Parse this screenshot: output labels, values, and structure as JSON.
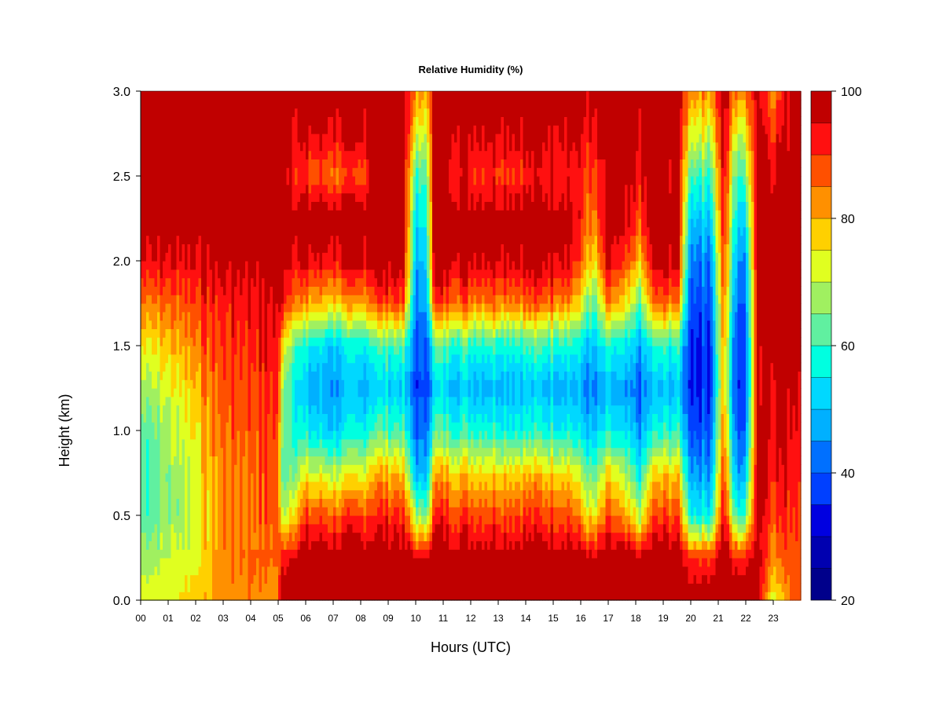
{
  "chart_data": {
    "type": "heatmap",
    "title": "Relative Humidity (%)",
    "xlabel": "Hours (UTC)",
    "ylabel": "Height (km)",
    "xlim": [
      0,
      24
    ],
    "ylim": [
      0.0,
      3.0
    ],
    "x_ticks": [
      "00",
      "01",
      "02",
      "03",
      "04",
      "05",
      "06",
      "07",
      "08",
      "09",
      "10",
      "11",
      "12",
      "13",
      "14",
      "15",
      "16",
      "17",
      "18",
      "19",
      "20",
      "21",
      "22",
      "23"
    ],
    "y_ticks": [
      "0.0",
      "0.5",
      "1.0",
      "1.5",
      "2.0",
      "2.5",
      "3.0"
    ],
    "colorbar": {
      "range": [
        20,
        100
      ],
      "levels": [
        20,
        25,
        30,
        35,
        40,
        45,
        50,
        55,
        60,
        65,
        70,
        75,
        80,
        85,
        90,
        95,
        100
      ],
      "tick_labels": [
        "20",
        "40",
        "60",
        "80",
        "100"
      ],
      "colors": [
        "#00008b",
        "#0000b0",
        "#0000e0",
        "#0040ff",
        "#0070ff",
        "#00b0ff",
        "#00d8ff",
        "#00ffe0",
        "#60f0a0",
        "#a0f060",
        "#e0ff20",
        "#ffd000",
        "#ff9000",
        "#ff5000",
        "#ff1010",
        "#c00000"
      ]
    },
    "field_description_keypoints": {
      "x_hours": [
        0,
        1,
        2,
        3,
        4,
        5.05,
        5.3,
        6,
        7,
        8.2,
        9.5,
        10.2,
        10.6,
        11.5,
        13,
        15,
        16.5,
        17,
        18.2,
        19,
        20,
        20.5,
        21.2,
        21.5,
        22.0,
        22.5,
        23.0,
        23.8
      ],
      "note": "values in %"
    },
    "profiles": [
      {
        "t": 0.0,
        "rh": [
          72,
          68,
          62,
          60,
          62,
          68,
          75,
          85,
          95,
          100,
          100,
          100,
          100
        ]
      },
      {
        "t": 1.0,
        "rh": [
          74,
          70,
          66,
          66,
          68,
          72,
          78,
          86,
          95,
          100,
          100,
          100,
          100
        ]
      },
      {
        "t": 2.0,
        "rh": [
          78,
          74,
          72,
          74,
          76,
          80,
          85,
          90,
          96,
          100,
          100,
          100,
          100
        ]
      },
      {
        "t": 3.0,
        "rh": [
          82,
          84,
          84,
          84,
          86,
          88,
          90,
          92,
          98,
          100,
          100,
          100,
          100
        ]
      },
      {
        "t": 4.0,
        "rh": [
          85,
          86,
          86,
          86,
          88,
          90,
          92,
          94,
          98,
          100,
          100,
          100,
          100
        ]
      },
      {
        "t": 5.0,
        "rh": [
          80,
          86,
          88,
          88,
          90,
          92,
          94,
          96,
          100,
          100,
          100,
          100,
          100
        ]
      },
      {
        "t": 5.1,
        "rh": [
          100,
          92,
          70,
          62,
          65,
          70,
          78,
          95,
          100,
          100,
          100,
          100,
          100
        ]
      },
      {
        "t": 6.0,
        "rh": [
          100,
          100,
          88,
          72,
          55,
          48,
          55,
          80,
          95,
          100,
          88,
          95,
          100
        ]
      },
      {
        "t": 7.0,
        "rh": [
          100,
          100,
          88,
          70,
          52,
          46,
          52,
          78,
          94,
          100,
          86,
          95,
          100
        ]
      },
      {
        "t": 8.0,
        "rh": [
          100,
          100,
          88,
          72,
          55,
          48,
          55,
          80,
          96,
          100,
          86,
          95,
          100
        ]
      },
      {
        "t": 8.4,
        "rh": [
          100,
          100,
          92,
          80,
          62,
          52,
          60,
          88,
          100,
          100,
          100,
          100,
          100
        ]
      },
      {
        "t": 9.5,
        "rh": [
          100,
          100,
          92,
          80,
          62,
          52,
          62,
          90,
          100,
          100,
          100,
          100,
          100
        ]
      },
      {
        "t": 10.0,
        "rh": [
          100,
          96,
          70,
          50,
          42,
          38,
          40,
          45,
          50,
          55,
          62,
          75,
          85
        ]
      },
      {
        "t": 10.3,
        "rh": [
          100,
          96,
          62,
          45,
          40,
          36,
          38,
          42,
          46,
          52,
          58,
          68,
          78
        ]
      },
      {
        "t": 10.7,
        "rh": [
          100,
          100,
          92,
          80,
          62,
          52,
          62,
          90,
          100,
          100,
          100,
          100,
          100
        ]
      },
      {
        "t": 12.0,
        "rh": [
          100,
          100,
          90,
          78,
          60,
          50,
          60,
          86,
          98,
          100,
          92,
          98,
          100
        ]
      },
      {
        "t": 14.0,
        "rh": [
          100,
          100,
          90,
          78,
          58,
          50,
          60,
          86,
          98,
          100,
          92,
          98,
          100
        ]
      },
      {
        "t": 15.5,
        "rh": [
          100,
          100,
          90,
          78,
          58,
          50,
          60,
          86,
          98,
          100,
          94,
          98,
          100
        ]
      },
      {
        "t": 16.5,
        "rh": [
          100,
          96,
          72,
          60,
          48,
          42,
          48,
          60,
          74,
          82,
          88,
          92,
          96
        ]
      },
      {
        "t": 17.0,
        "rh": [
          100,
          100,
          88,
          76,
          56,
          48,
          58,
          84,
          96,
          100,
          96,
          100,
          100
        ]
      },
      {
        "t": 18.2,
        "rh": [
          100,
          96,
          70,
          56,
          46,
          40,
          48,
          62,
          78,
          88,
          94,
          96,
          100
        ]
      },
      {
        "t": 18.6,
        "rh": [
          100,
          100,
          88,
          76,
          56,
          48,
          58,
          84,
          96,
          100,
          96,
          100,
          100
        ]
      },
      {
        "t": 19.5,
        "rh": [
          100,
          100,
          90,
          78,
          60,
          50,
          60,
          86,
          98,
          100,
          98,
          100,
          100
        ]
      },
      {
        "t": 20.0,
        "rh": [
          100,
          90,
          58,
          48,
          40,
          36,
          36,
          40,
          44,
          52,
          62,
          74,
          84
        ]
      },
      {
        "t": 20.7,
        "rh": [
          100,
          90,
          56,
          46,
          40,
          36,
          36,
          40,
          44,
          52,
          60,
          72,
          82
        ]
      },
      {
        "t": 21.2,
        "rh": [
          100,
          100,
          96,
          90,
          84,
          80,
          82,
          86,
          90,
          94,
          96,
          98,
          100
        ]
      },
      {
        "t": 21.6,
        "rh": [
          100,
          92,
          60,
          48,
          42,
          38,
          40,
          44,
          50,
          56,
          62,
          72,
          84
        ]
      },
      {
        "t": 22.0,
        "rh": [
          100,
          92,
          60,
          48,
          40,
          36,
          36,
          40,
          44,
          52,
          62,
          72,
          84
        ]
      },
      {
        "t": 22.4,
        "rh": [
          100,
          100,
          100,
          100,
          98,
          96,
          96,
          98,
          100,
          100,
          100,
          100,
          100
        ]
      },
      {
        "t": 23.0,
        "rh": [
          72,
          84,
          90,
          94,
          96,
          98,
          100,
          100,
          100,
          100,
          98,
          92,
          84
        ]
      },
      {
        "t": 23.8,
        "rh": [
          88,
          90,
          92,
          94,
          96,
          98,
          100,
          100,
          100,
          100,
          100,
          100,
          100
        ]
      }
    ],
    "profile_heights_km": [
      0.0,
      0.25,
      0.5,
      0.75,
      1.0,
      1.25,
      1.5,
      1.75,
      2.0,
      2.25,
      2.5,
      2.75,
      3.0
    ]
  }
}
